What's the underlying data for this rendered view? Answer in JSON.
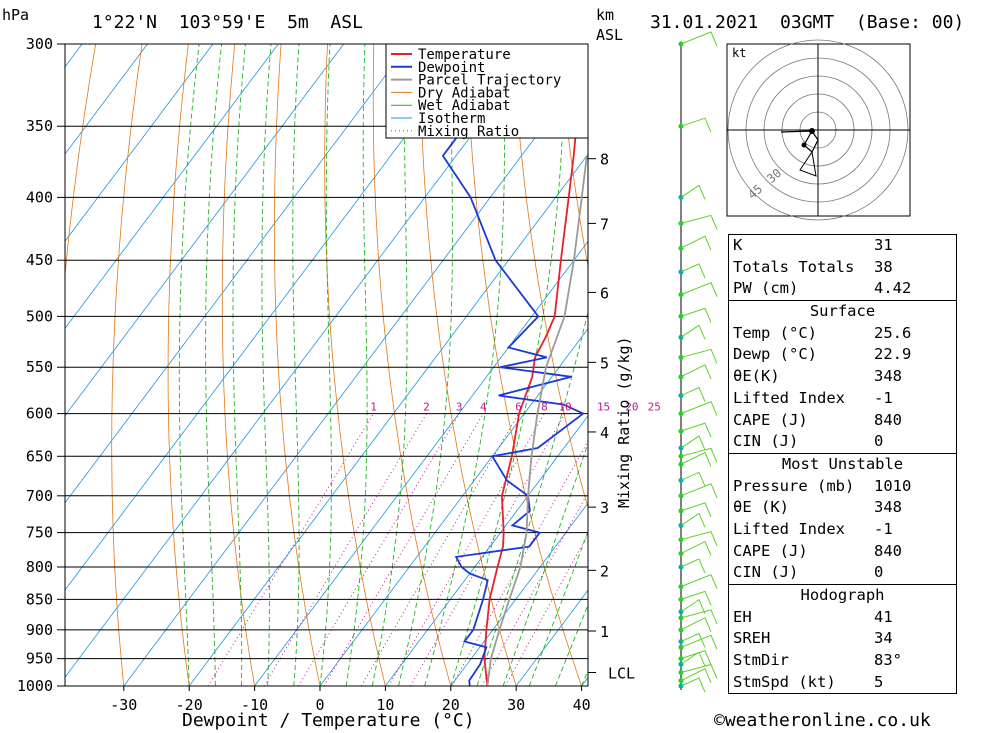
{
  "header": {
    "pressure_unit": "hPa",
    "location": "1°22'N  103°59'E  5m  ASL",
    "km_unit": "km",
    "asl": "ASL",
    "datetime": "31.01.2021  03GMT  (Base: 00)"
  },
  "axes": {
    "xlabel": "Dewpoint / Temperature (°C)",
    "mixing_label": "Mixing Ratio (g/kg)",
    "lcl": "LCL",
    "pressure_ticks": [
      "300",
      "350",
      "400",
      "450",
      "500",
      "550",
      "600",
      "650",
      "700",
      "750",
      "800",
      "850",
      "900",
      "950",
      "1000"
    ],
    "temp_ticks": [
      "-30",
      "-20",
      "-10",
      "0",
      "10",
      "20",
      "30",
      "40"
    ],
    "km_ticks": [
      "8",
      "7",
      "6",
      "5",
      "4",
      "3",
      "2",
      "1"
    ],
    "mixing_ticks": [
      "1",
      "2",
      "3",
      "4",
      "6",
      "8",
      "10",
      "15",
      "20",
      "25"
    ]
  },
  "legend": [
    "Temperature",
    "Dewpoint",
    "Parcel Trajectory",
    "Dry Adiabat",
    "Wet Adiabat",
    "Isotherm",
    "Mixing Ratio"
  ],
  "colors": {
    "temperature": "#e8202a",
    "dewpoint": "#1a3ad6",
    "parcel": "#9a9a9a",
    "dry": "#e07818",
    "wet": "#22b422",
    "isotherm": "#1e96e0",
    "mixing": "#c01890",
    "wind": "#5ad22a"
  },
  "hodograph": {
    "unit": "kt",
    "ring_labels": [
      "30",
      "45"
    ]
  },
  "indices": {
    "rows": [
      [
        "K",
        "31"
      ],
      [
        "Totals Totals",
        "38"
      ],
      [
        "PW (cm)",
        "4.42"
      ]
    ]
  },
  "surface": {
    "title": "Surface",
    "rows": [
      [
        "Temp (°C)",
        "25.6"
      ],
      [
        "Dewp (°C)",
        "22.9"
      ],
      [
        "θE(K)",
        "348"
      ],
      [
        "Lifted Index",
        "-1"
      ],
      [
        "CAPE (J)",
        "840"
      ],
      [
        "CIN (J)",
        "0"
      ]
    ]
  },
  "most_unstable": {
    "title": "Most Unstable",
    "rows": [
      [
        "Pressure (mb)",
        "1010"
      ],
      [
        "θE (K)",
        "348"
      ],
      [
        "Lifted Index",
        "-1"
      ],
      [
        "CAPE (J)",
        "840"
      ],
      [
        "CIN (J)",
        "0"
      ]
    ]
  },
  "hodo_table": {
    "title": "Hodograph",
    "rows": [
      [
        "EH",
        "41"
      ],
      [
        "SREH",
        "34"
      ],
      [
        "StmDir",
        "83°"
      ],
      [
        "StmSpd (kt)",
        "5"
      ]
    ]
  },
  "footer": "©weatheronline.co.uk",
  "chart_data": {
    "type": "line",
    "title": "1°22'N 103°59'E 5m ASL — 31.01.2021 03GMT (Base: 00)",
    "xlabel": "Dewpoint / Temperature (°C)",
    "ylabel": "hPa",
    "y_log_pressure": true,
    "ylim": [
      1000,
      300
    ],
    "xlim": [
      -40,
      40
    ],
    "series": [
      {
        "name": "Temperature",
        "points": [
          [
            1000,
            25.6
          ],
          [
            950,
            22
          ],
          [
            900,
            19
          ],
          [
            850,
            16
          ],
          [
            800,
            13.5
          ],
          [
            770,
            12
          ],
          [
            750,
            10.5
          ],
          [
            700,
            6
          ],
          [
            650,
            3
          ],
          [
            600,
            -0.8
          ],
          [
            560,
            -3
          ],
          [
            540,
            -4.8
          ],
          [
            520,
            -5.5
          ],
          [
            500,
            -6.5
          ],
          [
            450,
            -12
          ],
          [
            400,
            -18
          ],
          [
            370,
            -22
          ],
          [
            350,
            -25
          ],
          [
            320,
            -30
          ],
          [
            300,
            -34
          ]
        ]
      },
      {
        "name": "Dewpoint",
        "points": [
          [
            1000,
            22.9
          ],
          [
            990,
            22.2
          ],
          [
            960,
            22
          ],
          [
            930,
            21
          ],
          [
            920,
            17
          ],
          [
            900,
            17
          ],
          [
            850,
            15
          ],
          [
            820,
            13.5
          ],
          [
            810,
            10
          ],
          [
            800,
            8
          ],
          [
            785,
            6
          ],
          [
            770,
            16
          ],
          [
            750,
            16
          ],
          [
            740,
            11
          ],
          [
            720,
            12
          ],
          [
            700,
            10
          ],
          [
            680,
            5
          ],
          [
            650,
            0
          ],
          [
            640,
            6
          ],
          [
            600,
            9
          ],
          [
            590,
            5
          ],
          [
            580,
            -6
          ],
          [
            560,
            3
          ],
          [
            550,
            -9
          ],
          [
            540,
            -3
          ],
          [
            530,
            -10
          ],
          [
            500,
            -9
          ],
          [
            450,
            -22
          ],
          [
            400,
            -33
          ],
          [
            370,
            -42
          ],
          [
            350,
            -42
          ],
          [
            330,
            -37
          ],
          [
            320,
            -43
          ],
          [
            300,
            -46
          ]
        ]
      },
      {
        "name": "Parcel Trajectory",
        "points": [
          [
            1000,
            25.6
          ],
          [
            950,
            23
          ],
          [
            900,
            21
          ],
          [
            850,
            19
          ],
          [
            800,
            17
          ],
          [
            750,
            14
          ],
          [
            700,
            10
          ],
          [
            650,
            6
          ],
          [
            600,
            2
          ],
          [
            550,
            -2
          ],
          [
            500,
            -5
          ],
          [
            450,
            -10
          ],
          [
            400,
            -16
          ],
          [
            370,
            -20
          ]
        ]
      }
    ],
    "lcl_pressure": 975,
    "mixing_ratios": [
      1,
      2,
      3,
      4,
      6,
      8,
      10,
      15,
      20,
      25
    ],
    "km_levels": [
      [
        8,
        372
      ],
      [
        7,
        420
      ],
      [
        6,
        478
      ],
      [
        5,
        545
      ],
      [
        4,
        621
      ],
      [
        3,
        715
      ],
      [
        2,
        805
      ],
      [
        1,
        902
      ]
    ]
  }
}
